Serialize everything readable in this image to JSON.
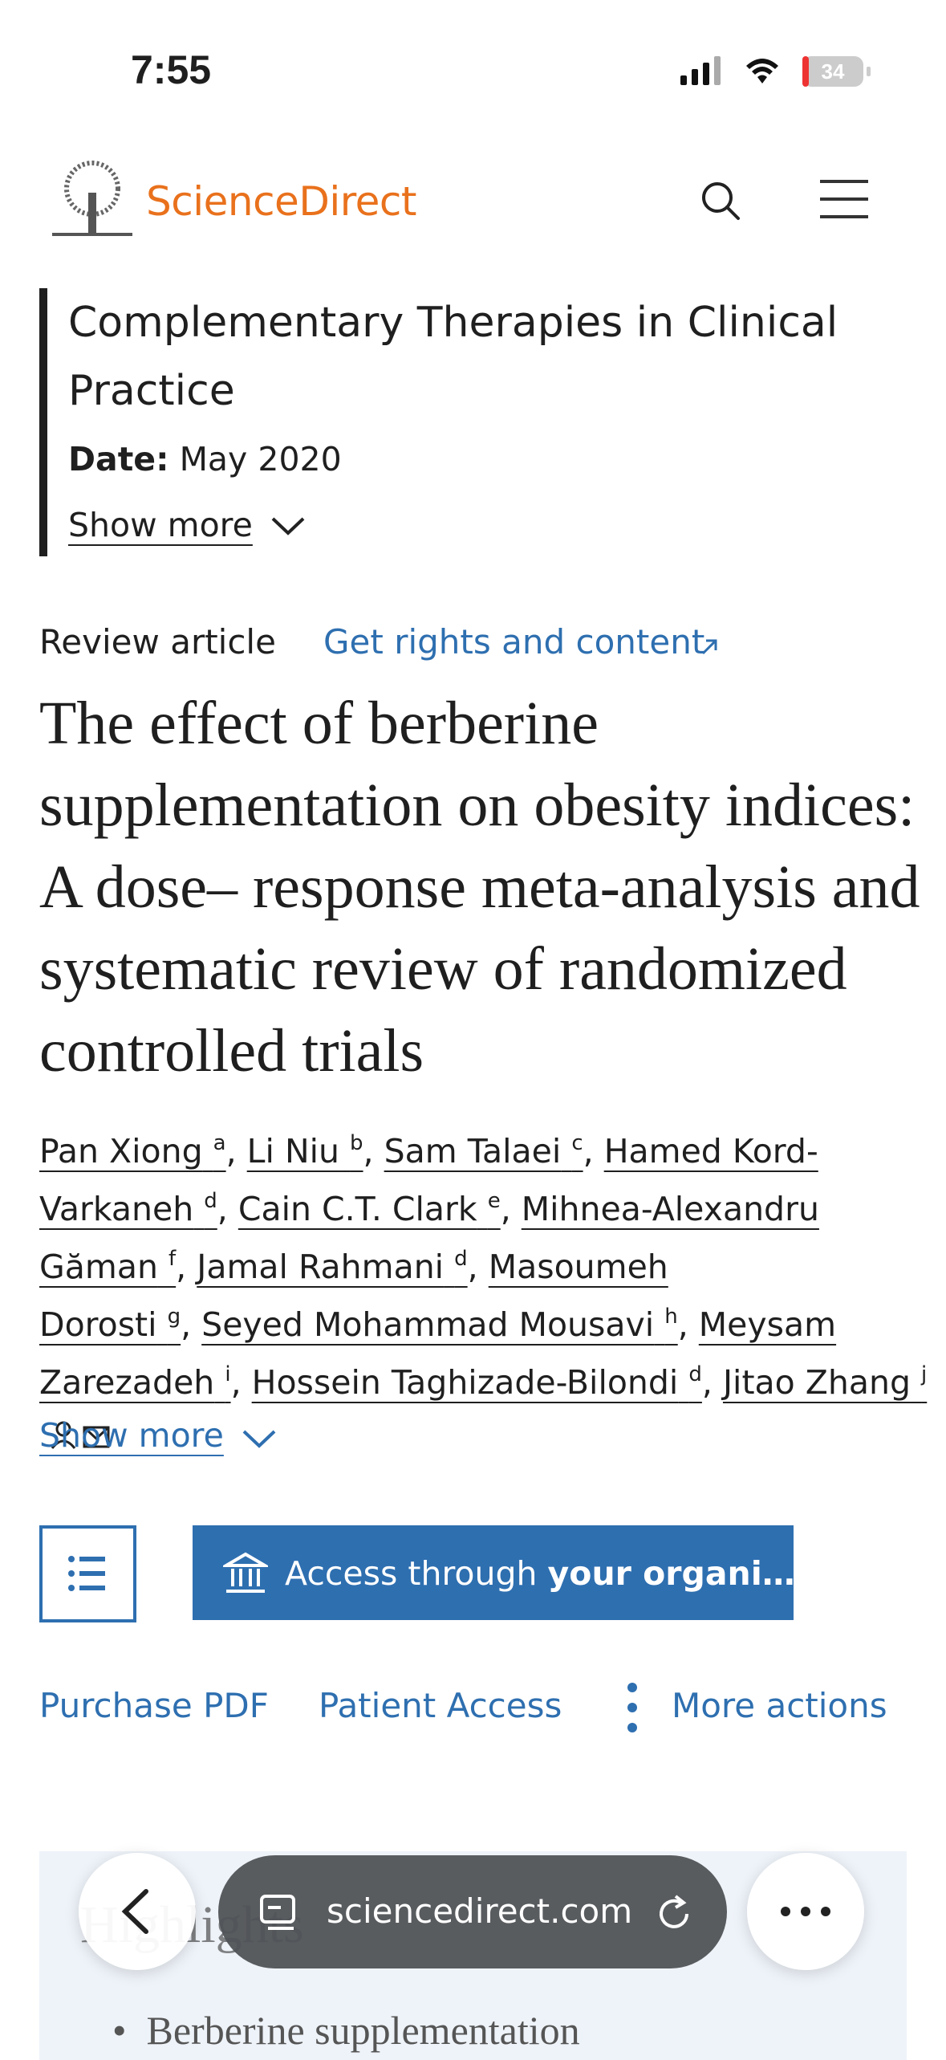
{
  "status_bar": {
    "time": "7:55",
    "battery": "34"
  },
  "header": {
    "logo": "ScienceDirect"
  },
  "journal": {
    "title": "Complementary Therapies in Clinical Practice",
    "date_label": "Date:",
    "date": "May 2020",
    "show_more": "Show more"
  },
  "article": {
    "type": "Review article",
    "rights": "Get rights and content",
    "title": "The effect of berberine supplementation on obesity indices: A dose– response meta-analysis and systematic review of randomized controlled trials",
    "authors": [
      {
        "name": "Pan Xiong",
        "sup": "a"
      },
      {
        "name": "Li Niu",
        "sup": "b"
      },
      {
        "name": "Sam Talaei",
        "sup": "c"
      },
      {
        "name": "Hamed Kord-Varkaneh",
        "sup": "d"
      },
      {
        "name": "Cain C.T. Clark",
        "sup": "e"
      },
      {
        "name": "Mihnea-Alexandru Găman",
        "sup": "f"
      },
      {
        "name": "Jamal Rahmani",
        "sup": "d"
      },
      {
        "name": "Masoumeh Dorosti",
        "sup": "g"
      },
      {
        "name": "Seyed Mohammad Mousavi",
        "sup": "h"
      },
      {
        "name": "Meysam Zarezadeh",
        "sup": "i"
      },
      {
        "name": "Hossein Taghizade-Bilondi",
        "sup": "d"
      },
      {
        "name": "Jitao Zhang",
        "sup": "j"
      }
    ],
    "show_more": "Show more"
  },
  "access_button": {
    "prefix": "Access through",
    "bold": "your organi…"
  },
  "actions": [
    "Purchase PDF",
    "Patient Access",
    "More actions"
  ],
  "highlights": {
    "title": "Highlights",
    "bullets": [
      "Berberine supplementation"
    ]
  },
  "browser": {
    "url": "sciencedirect.com"
  }
}
